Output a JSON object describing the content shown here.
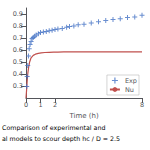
{
  "chart_data": {
    "type": "scatter",
    "xlabel": "Time (h)",
    "annotations": [
      "Comparison of experimental and",
      "al models to scour depth hc / D = 2.5"
    ],
    "xlim": [
      0,
      8
    ],
    "xticks": [
      0,
      1,
      2,
      8
    ],
    "ylim": [
      0.2,
      0.95
    ],
    "yticks": [
      0.3,
      0.4,
      0.5,
      0.6,
      0.7,
      0.8,
      0.9
    ],
    "grid": false,
    "legend": "lower right",
    "series": [
      {
        "name": "Exp",
        "type": "scatter",
        "color": "#4472C4",
        "marker": "plus",
        "x": [
          0.05,
          0.08,
          0.12,
          0.17,
          0.22,
          0.28,
          0.35,
          0.42,
          0.5,
          0.6,
          0.7,
          0.85,
          1.0,
          1.2,
          1.4,
          1.6,
          1.8,
          2.0,
          2.2,
          2.5,
          2.8,
          3.0,
          3.3,
          3.6,
          4.0,
          4.5,
          5.0,
          5.5,
          6.0,
          6.5,
          7.0,
          7.5,
          8.0
        ],
        "values": [
          0.295,
          0.38,
          0.47,
          0.55,
          0.61,
          0.645,
          0.67,
          0.695,
          0.705,
          0.715,
          0.725,
          0.735,
          0.745,
          0.75,
          0.755,
          0.76,
          0.765,
          0.77,
          0.775,
          0.78,
          0.79,
          0.795,
          0.8,
          0.81,
          0.815,
          0.825,
          0.835,
          0.845,
          0.855,
          0.86,
          0.87,
          0.875,
          0.89
        ]
      },
      {
        "name": "Nu",
        "type": "line",
        "color": "#C0504D",
        "x": [
          0.0,
          0.04,
          0.08,
          0.13,
          0.18,
          0.25,
          0.35,
          0.5,
          0.65,
          0.85,
          1.05,
          1.3,
          1.6,
          1.9,
          2.2,
          2.6,
          3.0,
          3.5,
          4.0,
          5.0,
          6.0,
          7.0,
          8.0
        ],
        "values": [
          0.2,
          0.265,
          0.34,
          0.41,
          0.455,
          0.5,
          0.535,
          0.555,
          0.565,
          0.572,
          0.576,
          0.579,
          0.581,
          0.582,
          0.583,
          0.584,
          0.585,
          0.585,
          0.585,
          0.585,
          0.585,
          0.585,
          0.585
        ]
      }
    ]
  }
}
